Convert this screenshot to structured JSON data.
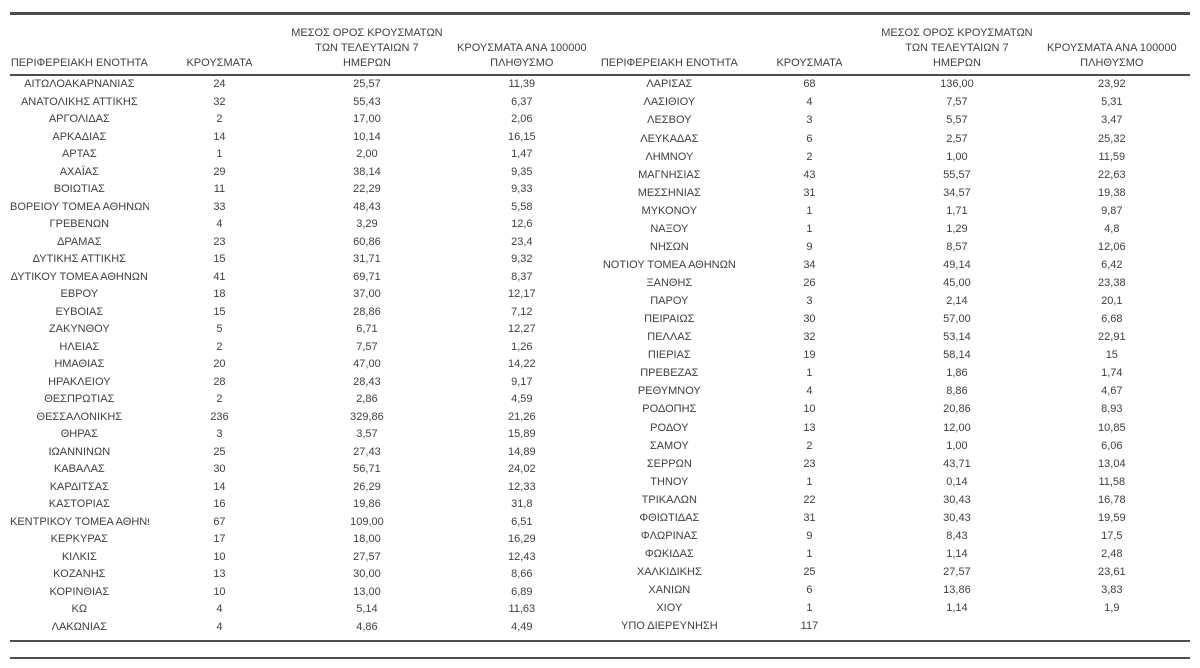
{
  "page": {
    "background_color": "#ffffff",
    "text_color": "#404040",
    "rule_color": "#4d4d4d"
  },
  "column_headers": [
    {
      "id": "regional-unit",
      "lines": [
        "ΠΕΡΙΦΕΡΕΙΑΚΗ ΕΝΟΤΗΤΑ"
      ]
    },
    {
      "id": "cases",
      "lines": [
        "ΚΡΟΥΣΜΑΤΑ"
      ]
    },
    {
      "id": "avg-7day",
      "lines": [
        "ΜΕΣΟΣ ΟΡΟΣ ΚΡΟΥΣΜΑΤΩΝ",
        "ΤΩΝ ΤΕΛΕΥΤΑΙΩΝ 7",
        "ΗΜΕΡΩΝ"
      ]
    },
    {
      "id": "per-100k",
      "lines": [
        "ΚΡΟΥΣΜΑΤΑ ΑΝΑ 100000",
        "ΠΛΗΘΥΣΜΟ"
      ]
    }
  ],
  "tables": [
    {
      "name": "left",
      "rows": [
        [
          "ΑΙΤΩΛΟΑΚΑΡΝΑΝΙΑΣ",
          "24",
          "25,57",
          "11,39"
        ],
        [
          "ΑΝΑΤΟΛΙΚΗΣ ΑΤΤΙΚΗΣ",
          "32",
          "55,43",
          "6,37"
        ],
        [
          "ΑΡΓΟΛΙΔΑΣ",
          "2",
          "17,00",
          "2,06"
        ],
        [
          "ΑΡΚΑΔΙΑΣ",
          "14",
          "10,14",
          "16,15"
        ],
        [
          "ΑΡΤΑΣ",
          "1",
          "2,00",
          "1,47"
        ],
        [
          "ΑΧΑΪΑΣ",
          "29",
          "38,14",
          "9,35"
        ],
        [
          "ΒΟΙΩΤΙΑΣ",
          "11",
          "22,29",
          "9,33"
        ],
        [
          "ΒΟΡΕΙΟΥ ΤΟΜΕΑ ΑΘΗΝΩΝ",
          "33",
          "48,43",
          "5,58"
        ],
        [
          "ΓΡΕΒΕΝΩΝ",
          "4",
          "3,29",
          "12,6"
        ],
        [
          "ΔΡΑΜΑΣ",
          "23",
          "60,86",
          "23,4"
        ],
        [
          "ΔΥΤΙΚΗΣ ΑΤΤΙΚΗΣ",
          "15",
          "31,71",
          "9,32"
        ],
        [
          "ΔΥΤΙΚΟΥ ΤΟΜΕΑ ΑΘΗΝΩΝ",
          "41",
          "69,71",
          "8,37"
        ],
        [
          "ΕΒΡΟΥ",
          "18",
          "37,00",
          "12,17"
        ],
        [
          "ΕΥΒΟΙΑΣ",
          "15",
          "28,86",
          "7,12"
        ],
        [
          "ΖΑΚΥΝΘΟΥ",
          "5",
          "6,71",
          "12,27"
        ],
        [
          "ΗΛΕΙΑΣ",
          "2",
          "7,57",
          "1,26"
        ],
        [
          "ΗΜΑΘΙΑΣ",
          "20",
          "47,00",
          "14,22"
        ],
        [
          "ΗΡΑΚΛΕΙΟΥ",
          "28",
          "28,43",
          "9,17"
        ],
        [
          "ΘΕΣΠΡΩΤΙΑΣ",
          "2",
          "2,86",
          "4,59"
        ],
        [
          "ΘΕΣΣΑΛΟΝΙΚΗΣ",
          "236",
          "329,86",
          "21,26"
        ],
        [
          "ΘΗΡΑΣ",
          "3",
          "3,57",
          "15,89"
        ],
        [
          "ΙΩΑΝΝΙΝΩΝ",
          "25",
          "27,43",
          "14,89"
        ],
        [
          "ΚΑΒΑΛΑΣ",
          "30",
          "56,71",
          "24,02"
        ],
        [
          "ΚΑΡΔΙΤΣΑΣ",
          "14",
          "26,29",
          "12,33"
        ],
        [
          "ΚΑΣΤΟΡΙΑΣ",
          "16",
          "19,86",
          "31,8"
        ],
        [
          "ΚΕΝΤΡΙΚΟΥ ΤΟΜΕΑ ΑΘΗΝΩΝ",
          "67",
          "109,00",
          "6,51"
        ],
        [
          "ΚΕΡΚΥΡΑΣ",
          "17",
          "18,00",
          "16,29"
        ],
        [
          "ΚΙΛΚΙΣ",
          "10",
          "27,57",
          "12,43"
        ],
        [
          "ΚΟΖΑΝΗΣ",
          "13",
          "30,00",
          "8,66"
        ],
        [
          "ΚΟΡΙΝΘΙΑΣ",
          "10",
          "13,00",
          "6,89"
        ],
        [
          "ΚΩ",
          "4",
          "5,14",
          "11,63"
        ],
        [
          "ΛΑΚΩΝΙΑΣ",
          "4",
          "4,86",
          "4,49"
        ]
      ]
    },
    {
      "name": "right",
      "rows": [
        [
          "ΛΑΡΙΣΑΣ",
          "68",
          "136,00",
          "23,92"
        ],
        [
          "ΛΑΣΙΘΙΟΥ",
          "4",
          "7,57",
          "5,31"
        ],
        [
          "ΛΕΣΒΟΥ",
          "3",
          "5,57",
          "3,47"
        ],
        [
          "ΛΕΥΚΑΔΑΣ",
          "6",
          "2,57",
          "25,32"
        ],
        [
          "ΛΗΜΝΟΥ",
          "2",
          "1,00",
          "11,59"
        ],
        [
          "ΜΑΓΝΗΣΙΑΣ",
          "43",
          "55,57",
          "22,63"
        ],
        [
          "ΜΕΣΣΗΝΙΑΣ",
          "31",
          "34,57",
          "19,38"
        ],
        [
          "ΜΥΚΟΝΟΥ",
          "1",
          "1,71",
          "9,87"
        ],
        [
          "ΝΑΞΟΥ",
          "1",
          "1,29",
          "4,8"
        ],
        [
          "ΝΗΣΩΝ",
          "9",
          "8,57",
          "12,06"
        ],
        [
          "ΝΟΤΙΟΥ ΤΟΜΕΑ ΑΘΗΝΩΝ",
          "34",
          "49,14",
          "6,42"
        ],
        [
          "ΞΑΝΘΗΣ",
          "26",
          "45,00",
          "23,38"
        ],
        [
          "ΠΑΡΟΥ",
          "3",
          "2,14",
          "20,1"
        ],
        [
          "ΠΕΙΡΑΙΩΣ",
          "30",
          "57,00",
          "6,68"
        ],
        [
          "ΠΕΛΛΑΣ",
          "32",
          "53,14",
          "22,91"
        ],
        [
          "ΠΙΕΡΙΑΣ",
          "19",
          "58,14",
          "15"
        ],
        [
          "ΠΡΕΒΕΖΑΣ",
          "1",
          "1,86",
          "1,74"
        ],
        [
          "ΡΕΘΥΜΝΟΥ",
          "4",
          "8,86",
          "4,67"
        ],
        [
          "ΡΟΔΟΠΗΣ",
          "10",
          "20,86",
          "8,93"
        ],
        [
          "ΡΟΔΟΥ",
          "13",
          "12,00",
          "10,85"
        ],
        [
          "ΣΑΜΟΥ",
          "2",
          "1,00",
          "6,06"
        ],
        [
          "ΣΕΡΡΩΝ",
          "23",
          "43,71",
          "13,04"
        ],
        [
          "ΤΗΝΟΥ",
          "1",
          "0,14",
          "11,58"
        ],
        [
          "ΤΡΙΚΑΛΩΝ",
          "22",
          "30,43",
          "16,78"
        ],
        [
          "ΦΘΙΩΤΙΔΑΣ",
          "31",
          "30,43",
          "19,59"
        ],
        [
          "ΦΛΩΡΙΝΑΣ",
          "9",
          "8,43",
          "17,5"
        ],
        [
          "ΦΩΚΙΔΑΣ",
          "1",
          "1,14",
          "2,48"
        ],
        [
          "ΧΑΛΚΙΔΙΚΗΣ",
          "25",
          "27,57",
          "23,61"
        ],
        [
          "ΧΑΝΙΩΝ",
          "6",
          "13,86",
          "3,83"
        ],
        [
          "ΧΙΟΥ",
          "1",
          "1,14",
          "1,9"
        ],
        [
          "ΥΠΟ ΔΙΕΡΕΥΝΗΣΗ",
          "117",
          "",
          ""
        ]
      ]
    }
  ]
}
